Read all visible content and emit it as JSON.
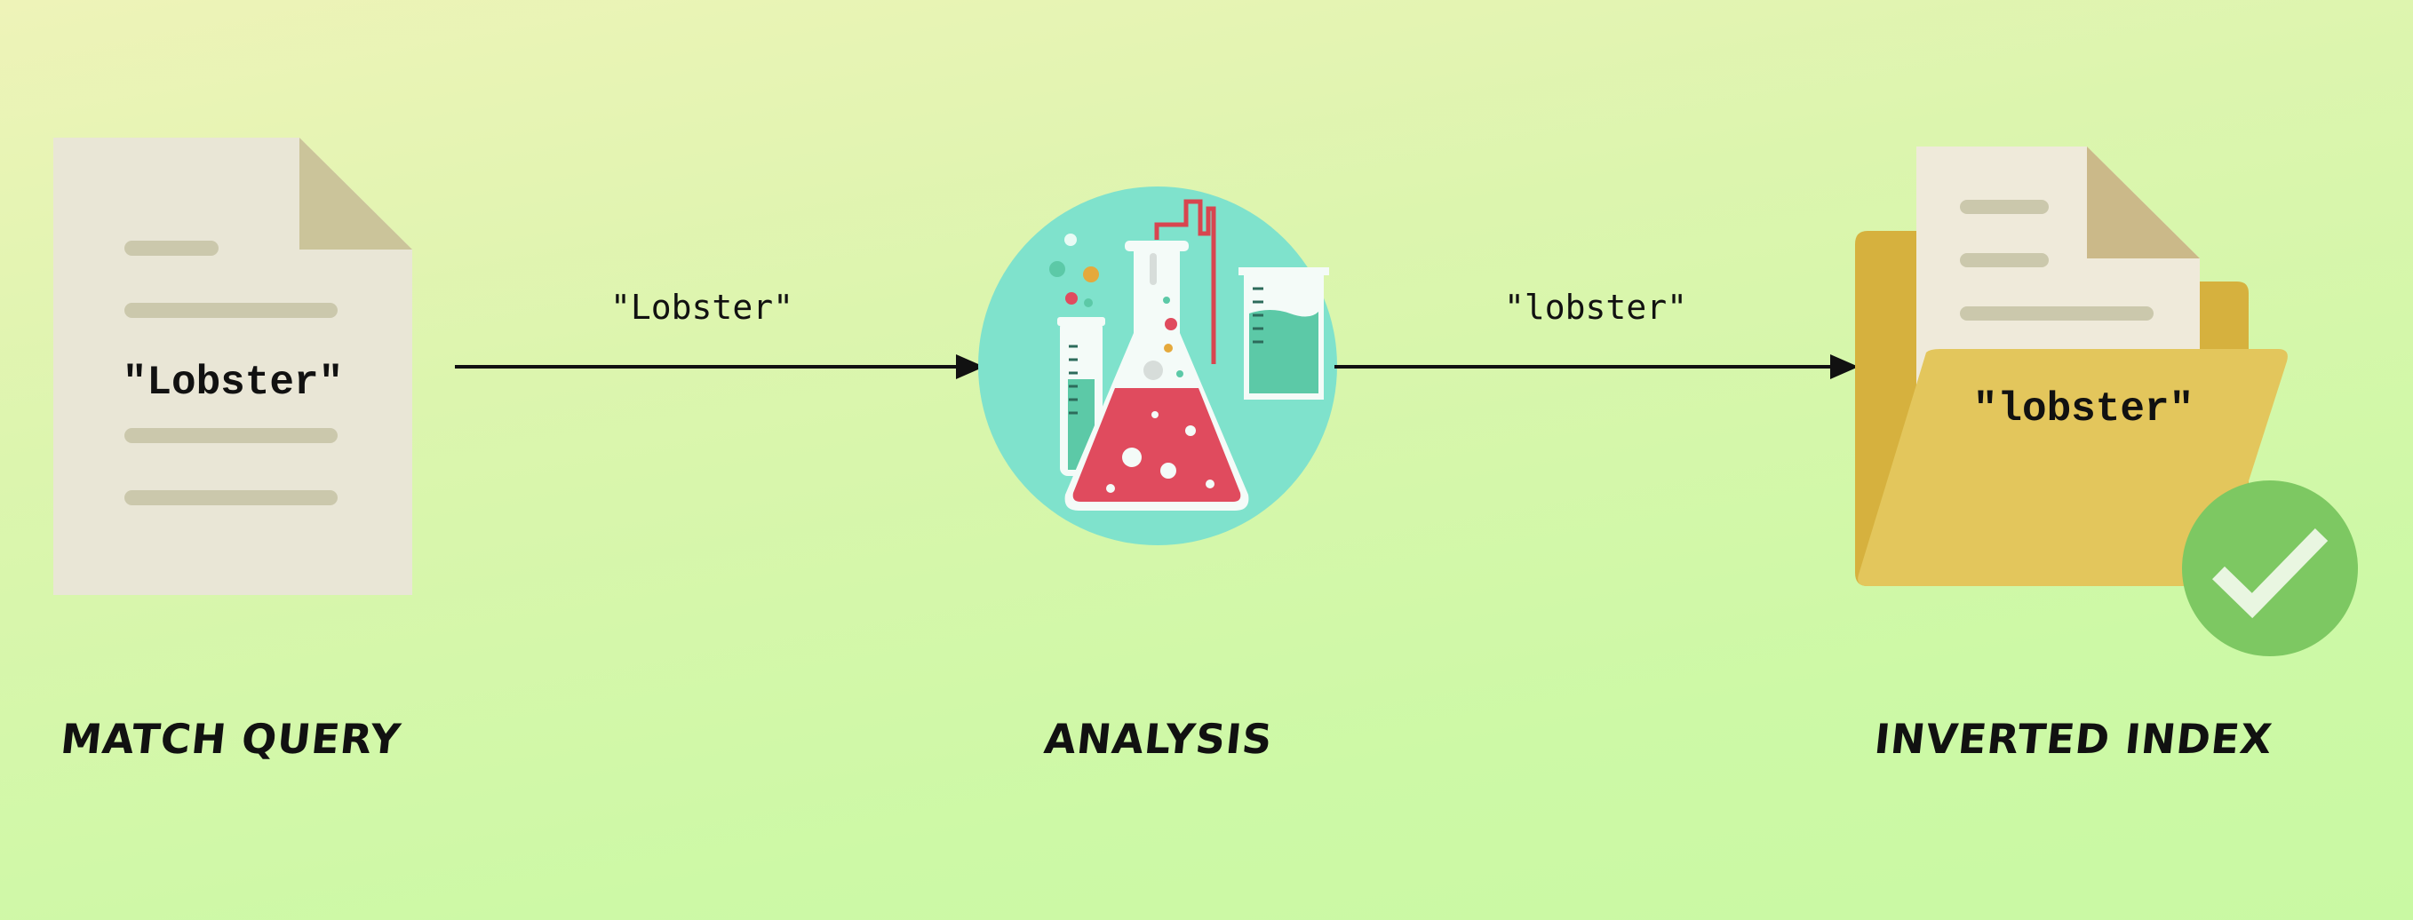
{
  "query_document": {
    "text": "\"Lobster\"",
    "stage_label": "MATCH QUERY"
  },
  "arrow_in": {
    "text": "\"Lobster\""
  },
  "analysis": {
    "stage_label": "ANALYSIS"
  },
  "arrow_out": {
    "text": "\"lobster\""
  },
  "index_document": {
    "text": "\"lobster\"",
    "stage_label": "INVERTED INDEX"
  },
  "colors": {
    "paper": "#e9e6d6",
    "paper_fold": "#cbc49a",
    "paper_lines": "#cbc8ac",
    "analysis_circle": "#7fe2cc",
    "liquid_red": "#e04b5e",
    "liquid_teal": "#5cc9a7",
    "tube_red": "#d8454f",
    "folder_back": "#d6b13e",
    "folder_front": "#e3c65c",
    "check_badge": "#7dc862"
  },
  "icons": [
    "document-icon",
    "lab-flask-icon",
    "folder-icon",
    "checkmark-icon"
  ]
}
